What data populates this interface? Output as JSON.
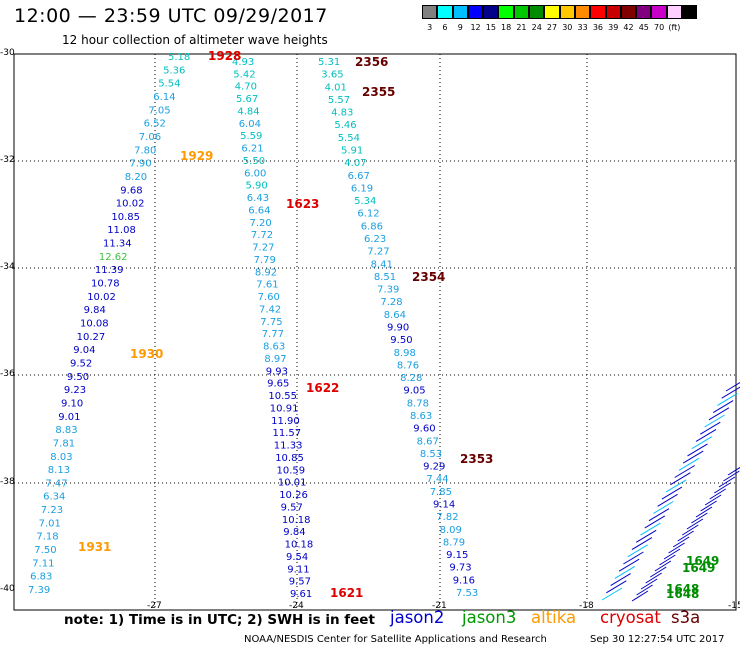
{
  "header": {
    "title": "12:00 — 23:59 UTC 09/29/2017",
    "subtitle": "12 hour collection of altimeter wave heights"
  },
  "legend": {
    "colors": [
      "#808080",
      "#00ffff",
      "#00bfff",
      "#0000ff",
      "#00008b",
      "#00ff00",
      "#00c800",
      "#008c00",
      "#ffff00",
      "#ffc800",
      "#ff8c00",
      "#ff0000",
      "#c80000",
      "#800000",
      "#800080",
      "#c800c8",
      "#ffd0ff",
      "#000000"
    ],
    "labels": [
      "3",
      "6",
      "9",
      "12",
      "15",
      "18",
      "21",
      "24",
      "27",
      "30",
      "33",
      "36",
      "39",
      "42",
      "45",
      "70",
      "(ft)"
    ]
  },
  "axes": {
    "y_labels": [
      "-30",
      "-32",
      "-34",
      "-36",
      "-38",
      "-40"
    ],
    "x_labels": [
      "-27",
      "-24",
      "-21",
      "-18",
      "-15"
    ]
  },
  "tracks": [
    {
      "satellite": "altika",
      "time_labels": [
        {
          "text": "1928"
        },
        {
          "text": "1929"
        },
        {
          "text": "1930"
        },
        {
          "text": "1931"
        }
      ],
      "values": [
        "5.18",
        "5.36",
        "5.54",
        "6.14",
        "7.05",
        "6.52",
        "7.06",
        "7.80",
        "7.90",
        "8.20",
        "9.68",
        "10.02",
        "10.85",
        "11.08",
        "11.34",
        "12.62",
        "11.39",
        "10.78",
        "10.02",
        "9.84",
        "10.08",
        "10.27",
        "9.04",
        "9.52",
        "9.50",
        "9.23",
        "9.10",
        "9.01",
        "8.83",
        "7.81",
        "8.03",
        "8.13",
        "7.47",
        "6.34",
        "7.23",
        "7.01",
        "7.18",
        "7.50",
        "7.11",
        "6.83",
        "7.39"
      ]
    },
    {
      "satellite": "cryosat",
      "time_labels": [
        {
          "text": "1928"
        },
        {
          "text": "1623"
        },
        {
          "text": "1622"
        },
        {
          "text": "1621"
        }
      ],
      "values": [
        "4.93",
        "5.42",
        "4.70",
        "5.67",
        "4.84",
        "6.04",
        "5.59",
        "6.21",
        "5.50",
        "6.00",
        "5.90",
        "6.43",
        "6.64",
        "7.20",
        "7.72",
        "7.27",
        "7.79",
        "8.92",
        "7.61",
        "7.60",
        "7.42",
        "7.75",
        "7.77",
        "8.63",
        "8.97",
        "9.93",
        "9.65",
        "10.55",
        "10.91",
        "11.90",
        "11.57",
        "11.33",
        "10.85",
        "10.59",
        "10.01",
        "10.26",
        "9.57",
        "10.18",
        "9.84",
        "10.18",
        "9.54",
        "9.11",
        "9.57",
        "9.61"
      ]
    },
    {
      "satellite": "s3a",
      "time_labels": [
        {
          "text": "2356"
        },
        {
          "text": "2355"
        },
        {
          "text": "2354"
        },
        {
          "text": "2353"
        }
      ],
      "values": [
        "5.31",
        "3.65",
        "4.01",
        "5.57",
        "4.83",
        "5.46",
        "5.54",
        "5.91",
        "4.07",
        "6.67",
        "6.19",
        "5.34",
        "6.12",
        "6.86",
        "6.23",
        "7.27",
        "8.41",
        "8.51",
        "7.39",
        "7.28",
        "8.64",
        "9.90",
        "9.50",
        "8.98",
        "8.76",
        "8.28",
        "9.05",
        "8.78",
        "8.63",
        "9.60",
        "8.67",
        "8.53",
        "9.29",
        "7.44",
        "7.85",
        "9.14",
        "7.82",
        "8.09",
        "8.79",
        "9.15",
        "9.73",
        "9.16",
        "7.53"
      ]
    },
    {
      "satellite": "jason3",
      "time_labels": [
        {
          "text": "1649"
        },
        {
          "text": "1649"
        },
        {
          "text": "1648"
        },
        {
          "text": "1648"
        }
      ],
      "values": []
    }
  ],
  "footer": {
    "note": "note: 1) Time is in UTC; 2) SWH is in feet",
    "satellites": [
      {
        "name": "jason2",
        "color": "#0000cc"
      },
      {
        "name": "jason3",
        "color": "#009900"
      },
      {
        "name": "altika",
        "color": "#ff9900"
      },
      {
        "name": "cryosat",
        "color": "#dd0000"
      },
      {
        "name": "s3a",
        "color": "#660000"
      }
    ],
    "credit": "NOAA/NESDIS Center for Satellite Applications and Research",
    "generated": "Sep 30 12:27:54 UTC 2017"
  }
}
